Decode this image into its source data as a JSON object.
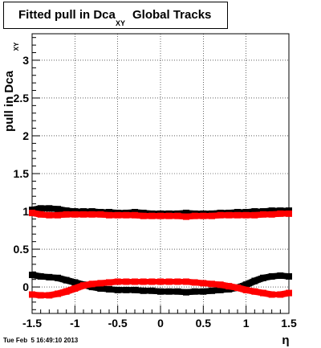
{
  "title": {
    "prefix": "Fitted pull in Dca",
    "subscript": "XY",
    "suffix": "Global Tracks"
  },
  "timestamp": "Tue Feb  5 16:49:10 2013",
  "colors": {
    "series_black": "#000000",
    "series_red": "#ff0000",
    "grid": "#000000"
  },
  "chart_data": {
    "type": "scatter",
    "xlabel": "η",
    "ylabel": "pull in Dca",
    "ylabel_subscript": "XY",
    "xlim": [
      -1.5,
      1.5
    ],
    "ylim": [
      -0.35,
      3.35
    ],
    "grid": true,
    "x_ticks": [
      -1.5,
      -1,
      -0.5,
      0,
      0.5,
      1,
      1.5
    ],
    "x_tick_labels": [
      "-1.5",
      "-1",
      "-0.5",
      "0",
      "0.5",
      "1",
      "1.5"
    ],
    "y_ticks": [
      0,
      0.5,
      1,
      1.5,
      2,
      2.5,
      3
    ],
    "y_tick_labels": [
      "0",
      "0.5",
      "1",
      "1.5",
      "2",
      "2.5",
      "3"
    ],
    "series": [
      {
        "color": "#000000",
        "x": [
          -1.5,
          -1.4,
          -1.3,
          -1.2,
          -1.1,
          -1.0,
          -0.9,
          -0.8,
          -0.7,
          -0.6,
          -0.5,
          -0.4,
          -0.3,
          -0.2,
          -0.1,
          0.0,
          0.1,
          0.2,
          0.3,
          0.4,
          0.5,
          0.6,
          0.7,
          0.8,
          0.9,
          1.0,
          1.1,
          1.2,
          1.3,
          1.4,
          1.5
        ],
        "y": [
          1.02,
          1.04,
          1.04,
          1.03,
          1.01,
          1.0,
          1.0,
          1.0,
          0.99,
          0.99,
          0.98,
          0.98,
          0.99,
          0.98,
          0.97,
          0.97,
          0.97,
          0.97,
          0.98,
          0.97,
          0.97,
          0.97,
          0.98,
          0.98,
          0.99,
          0.99,
          1.0,
          1.0,
          1.01,
          1.01,
          1.01
        ]
      },
      {
        "color": "#000000",
        "x": [
          -1.5,
          -1.4,
          -1.3,
          -1.2,
          -1.1,
          -1.0,
          -0.9,
          -0.8,
          -0.7,
          -0.6,
          -0.5,
          -0.4,
          -0.3,
          -0.2,
          -0.1,
          0.0,
          0.1,
          0.2,
          0.3,
          0.4,
          0.5,
          0.6,
          0.7,
          0.8,
          0.9,
          1.0,
          1.1,
          1.2,
          1.3,
          1.4,
          1.5
        ],
        "y": [
          0.16,
          0.14,
          0.13,
          0.12,
          0.09,
          0.06,
          0.03,
          0.0,
          -0.02,
          -0.03,
          -0.04,
          -0.04,
          -0.04,
          -0.05,
          -0.05,
          -0.06,
          -0.06,
          -0.06,
          -0.07,
          -0.06,
          -0.06,
          -0.05,
          -0.04,
          -0.03,
          -0.01,
          0.03,
          0.08,
          0.12,
          0.14,
          0.15,
          0.14
        ]
      },
      {
        "color": "#ff0000",
        "x": [
          -1.5,
          -1.4,
          -1.3,
          -1.2,
          -1.1,
          -1.0,
          -0.9,
          -0.8,
          -0.7,
          -0.6,
          -0.5,
          -0.4,
          -0.3,
          -0.2,
          -0.1,
          0.0,
          0.1,
          0.2,
          0.3,
          0.4,
          0.5,
          0.6,
          0.7,
          0.8,
          0.9,
          1.0,
          1.1,
          1.2,
          1.3,
          1.4,
          1.5
        ],
        "y": [
          0.98,
          0.96,
          0.95,
          0.95,
          0.96,
          0.96,
          0.96,
          0.96,
          0.96,
          0.95,
          0.95,
          0.95,
          0.95,
          0.94,
          0.94,
          0.94,
          0.94,
          0.94,
          0.93,
          0.94,
          0.94,
          0.94,
          0.95,
          0.95,
          0.95,
          0.95,
          0.95,
          0.96,
          0.96,
          0.97,
          0.97
        ]
      },
      {
        "color": "#ff0000",
        "x": [
          -1.5,
          -1.4,
          -1.3,
          -1.2,
          -1.1,
          -1.0,
          -0.9,
          -0.8,
          -0.7,
          -0.6,
          -0.5,
          -0.4,
          -0.3,
          -0.2,
          -0.1,
          0.0,
          0.1,
          0.2,
          0.3,
          0.4,
          0.5,
          0.6,
          0.7,
          0.8,
          0.9,
          1.0,
          1.1,
          1.2,
          1.3,
          1.4,
          1.5
        ],
        "y": [
          -0.1,
          -0.11,
          -0.11,
          -0.09,
          -0.06,
          -0.02,
          0.02,
          0.04,
          0.05,
          0.06,
          0.07,
          0.07,
          0.07,
          0.07,
          0.07,
          0.07,
          0.07,
          0.07,
          0.07,
          0.06,
          0.05,
          0.04,
          0.03,
          0.01,
          -0.01,
          -0.04,
          -0.06,
          -0.08,
          -0.1,
          -0.1,
          -0.08
        ]
      }
    ]
  }
}
